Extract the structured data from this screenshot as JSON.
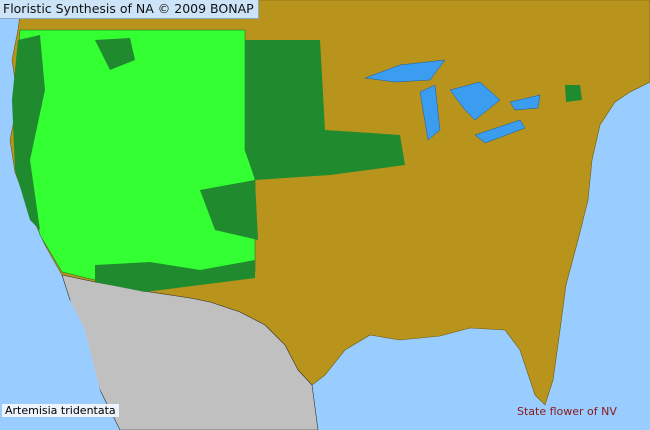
{
  "header": {
    "title": "Floristic Synthesis of NA © 2009 BONAP"
  },
  "species": {
    "name": "Artemisia tridentata"
  },
  "note": {
    "text": "State flower of NV"
  },
  "colors": {
    "ocean": "#99ccff",
    "absent_county": "#b8941c",
    "present_county": "#33ff33",
    "present_dark": "#1f8a2e",
    "mexico": "#c0c0c0",
    "lakes": "#3a9df0"
  }
}
